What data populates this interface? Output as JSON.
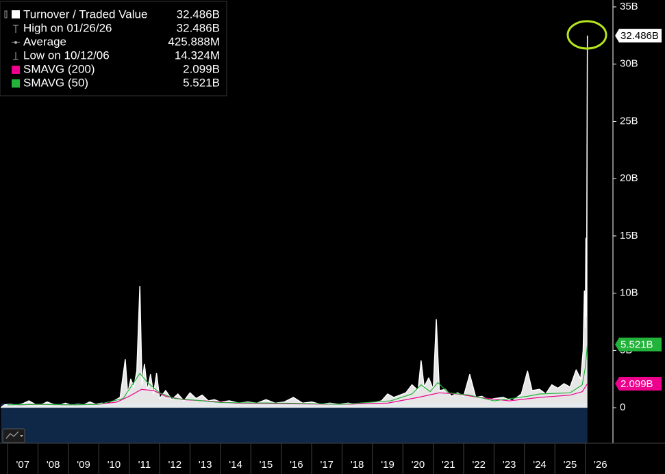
{
  "chart_data": {
    "type": "line",
    "xlim": [
      2006.75,
      2026.91
    ],
    "ylim": [
      -3.1,
      35.6
    ],
    "yticks": [
      {
        "value": 35,
        "label": "35B"
      },
      {
        "value": 30,
        "label": "30B"
      },
      {
        "value": 25,
        "label": "25B"
      },
      {
        "value": 20,
        "label": "20B"
      },
      {
        "value": 15,
        "label": "15B"
      },
      {
        "value": 10,
        "label": "10B"
      },
      {
        "value": 5,
        "label": "5B"
      },
      0
    ],
    "xticks": [
      {
        "value": 2007,
        "label": "'07"
      },
      {
        "value": 2008,
        "label": "'08"
      },
      {
        "value": 2009,
        "label": "'09"
      },
      {
        "value": 2010,
        "label": "'10"
      },
      {
        "value": 2011,
        "label": "'11"
      },
      {
        "value": 2012,
        "label": "'12"
      },
      {
        "value": 2013,
        "label": "'13"
      },
      {
        "value": 2014,
        "label": "'14"
      },
      {
        "value": 2015,
        "label": "'15"
      },
      {
        "value": 2016,
        "label": "'16"
      },
      {
        "value": 2017,
        "label": "'17"
      },
      {
        "value": 2018,
        "label": "'18"
      },
      {
        "value": 2019,
        "label": "'19"
      },
      {
        "value": 2020,
        "label": "'20"
      },
      {
        "value": 2021,
        "label": "'21"
      },
      {
        "value": 2022,
        "label": "'22"
      },
      {
        "value": 2023,
        "label": "'23"
      },
      {
        "value": 2024,
        "label": "'24"
      },
      {
        "value": 2025,
        "label": "'25"
      },
      {
        "value": 2026,
        "label": "'26"
      }
    ],
    "series": [
      {
        "name": "Turnover / Traded Value",
        "color": "#ffffff",
        "last_label": "32.486B",
        "x": [
          2006.78,
          2006.9,
          2007.1,
          2007.3,
          2007.5,
          2007.7,
          2007.9,
          2008.1,
          2008.3,
          2008.5,
          2008.7,
          2008.9,
          2009.1,
          2009.3,
          2009.5,
          2009.7,
          2009.9,
          2010.1,
          2010.3,
          2010.5,
          2010.7,
          2010.87,
          2010.95,
          2011.05,
          2011.15,
          2011.25,
          2011.35,
          2011.42,
          2011.5,
          2011.6,
          2011.7,
          2011.8,
          2011.9,
          2012.0,
          2012.2,
          2012.4,
          2012.6,
          2012.8,
          2013.0,
          2013.2,
          2013.4,
          2013.6,
          2013.8,
          2014.0,
          2014.3,
          2014.6,
          2014.9,
          2015.2,
          2015.5,
          2015.8,
          2016.1,
          2016.4,
          2016.7,
          2017.0,
          2017.3,
          2017.6,
          2017.9,
          2018.2,
          2018.5,
          2018.8,
          2019.1,
          2019.3,
          2019.5,
          2019.7,
          2019.9,
          2020.1,
          2020.3,
          2020.5,
          2020.6,
          2020.7,
          2020.85,
          2021.0,
          2021.1,
          2021.2,
          2021.4,
          2021.6,
          2021.8,
          2022.0,
          2022.2,
          2022.4,
          2022.6,
          2022.8,
          2023.0,
          2023.3,
          2023.6,
          2023.9,
          2024.1,
          2024.25,
          2024.5,
          2024.7,
          2024.9,
          2025.1,
          2025.3,
          2025.5,
          2025.7,
          2025.85,
          2025.93,
          2025.97,
          2026.0,
          2026.02,
          2026.04,
          2026.07
        ],
        "values": [
          0.014324,
          0.25,
          0.3,
          0.2,
          0.35,
          0.6,
          0.3,
          0.25,
          0.5,
          0.3,
          0.2,
          0.4,
          0.2,
          0.3,
          0.25,
          0.5,
          0.3,
          0.4,
          0.3,
          0.6,
          0.9,
          4.2,
          1.2,
          2.5,
          1.8,
          3.2,
          10.6,
          2.0,
          3.8,
          1.5,
          2.9,
          1.2,
          3.0,
          0.8,
          1.5,
          0.7,
          1.2,
          0.6,
          1.3,
          0.8,
          1.1,
          0.6,
          0.7,
          0.5,
          0.6,
          0.4,
          0.5,
          0.4,
          0.7,
          0.4,
          0.5,
          0.9,
          0.4,
          0.5,
          0.3,
          0.4,
          0.3,
          0.4,
          0.3,
          0.4,
          0.5,
          0.6,
          1.2,
          0.9,
          1.1,
          1.3,
          2.0,
          1.5,
          4.1,
          1.8,
          2.6,
          1.6,
          7.7,
          1.5,
          1.6,
          1.0,
          1.3,
          1.0,
          2.9,
          0.9,
          1.0,
          0.7,
          0.8,
          0.9,
          0.6,
          1.2,
          3.2,
          1.5,
          1.6,
          1.2,
          2.0,
          1.7,
          2.1,
          1.8,
          3.3,
          2.5,
          5.0,
          10.2,
          7.0,
          14.8,
          8.0,
          32.486
        ]
      },
      {
        "name": "SMAVG (200)",
        "color": "#ec008c",
        "last_label": "2.099B",
        "x": [
          2007.3,
          2008.0,
          2009.0,
          2010.0,
          2010.6,
          2011.0,
          2011.4,
          2011.8,
          2012.2,
          2012.8,
          2013.5,
          2014.5,
          2016.0,
          2018.0,
          2019.5,
          2020.5,
          2021.2,
          2021.8,
          2022.5,
          2023.5,
          2024.5,
          2025.5,
          2025.9,
          2026.07
        ],
        "values": [
          0.25,
          0.3,
          0.25,
          0.3,
          0.5,
          1.0,
          1.6,
          1.5,
          1.0,
          0.7,
          0.6,
          0.4,
          0.35,
          0.3,
          0.4,
          0.9,
          1.3,
          1.2,
          0.9,
          0.6,
          0.9,
          1.1,
          1.4,
          2.099
        ]
      },
      {
        "name": "SMAVG (50)",
        "color": "#22b33a",
        "last_label": "5.521B",
        "x": [
          2007.0,
          2008.0,
          2009.0,
          2010.0,
          2010.8,
          2011.1,
          2011.35,
          2011.6,
          2012.0,
          2012.5,
          2013.0,
          2014.0,
          2016.0,
          2018.0,
          2019.6,
          2020.3,
          2020.6,
          2020.9,
          2021.15,
          2021.5,
          2022.2,
          2023.0,
          2024.1,
          2024.5,
          2025.5,
          2025.9,
          2026.0,
          2026.07
        ],
        "values": [
          0.25,
          0.3,
          0.25,
          0.3,
          0.8,
          2.0,
          3.0,
          2.2,
          1.3,
          0.8,
          0.7,
          0.45,
          0.4,
          0.3,
          0.6,
          1.2,
          2.0,
          1.4,
          2.2,
          1.3,
          1.1,
          0.6,
          1.0,
          1.2,
          1.3,
          2.0,
          3.5,
          5.521
        ]
      }
    ],
    "stats": [
      {
        "label": "High on 01/26/26",
        "value": 32.486,
        "value_label": "32.486B"
      },
      {
        "label": "Average",
        "value": 0.425888,
        "value_label": "425.888M"
      },
      {
        "label": "Low on 10/12/06",
        "value": 0.014324,
        "value_label": "14.324M"
      }
    ]
  }
}
